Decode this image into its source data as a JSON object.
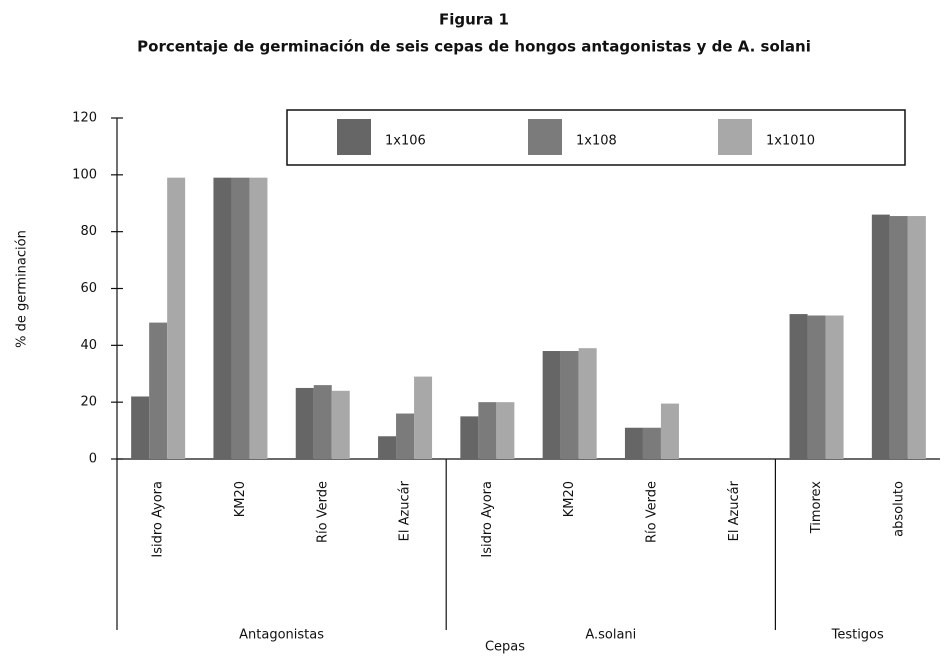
{
  "chart_data": {
    "type": "bar",
    "title": "Figura 1",
    "subtitle": "Porcentaje de germinación de seis cepas de hongos antagonistas y de A. solani",
    "ylabel": "% de germinación",
    "xlabel": "Cepas",
    "groups": [
      {
        "name": "Antagonistas",
        "categories": [
          "Isidro Ayora",
          "KM20",
          "Río Verde",
          "El Azucár"
        ]
      },
      {
        "name": "A.solani",
        "categories": [
          "Isidro Ayora",
          "KM20",
          "Río Verde",
          "El Azucár"
        ]
      },
      {
        "name": "Testigos",
        "categories": [
          "Timorex",
          "absoluto"
        ]
      }
    ],
    "series": [
      {
        "name": "1x106",
        "color": "#666666",
        "values": [
          22,
          99,
          25,
          8,
          15,
          38,
          11,
          0,
          51,
          86
        ]
      },
      {
        "name": "1x108",
        "color": "#7b7b7b",
        "values": [
          48,
          99,
          26,
          16,
          20,
          38,
          11,
          0,
          50.5,
          85.5
        ]
      },
      {
        "name": "1x1010",
        "color": "#a8a8a8",
        "values": [
          99,
          99,
          24,
          29,
          20,
          39,
          19.5,
          0,
          50.5,
          85.5
        ]
      }
    ],
    "ylim": [
      0,
      120
    ],
    "yticks": [
      0,
      20,
      40,
      60,
      80,
      100,
      120
    ]
  }
}
